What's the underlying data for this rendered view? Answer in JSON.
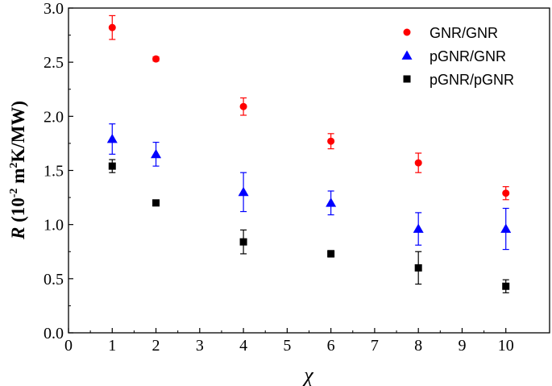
{
  "chart_data": {
    "type": "scatter",
    "xlim": [
      0,
      11
    ],
    "ylim": [
      0,
      3.0
    ],
    "x_ticks": [
      "0",
      "1",
      "2",
      "3",
      "4",
      "5",
      "6",
      "7",
      "8",
      "9",
      "10"
    ],
    "y_ticks": [
      "0.0",
      "0.5",
      "1.0",
      "1.5",
      "2.0",
      "2.5",
      "3.0"
    ],
    "xlabel": "χ",
    "ylabel": {
      "symbol": "R",
      "open": " (10",
      "exp1": "-2",
      "mid": " m",
      "exp2": "2",
      "close": "K/MW)"
    },
    "grid": false,
    "legend_position": "top-right",
    "series": [
      {
        "name": "GNR/GNR",
        "marker": "circle",
        "color": "#ff0000",
        "points": [
          {
            "x": 1,
            "y": 2.82,
            "err": 0.11
          },
          {
            "x": 2,
            "y": 2.53,
            "err": 0.02
          },
          {
            "x": 4,
            "y": 2.09,
            "err": 0.08
          },
          {
            "x": 6,
            "y": 1.77,
            "err": 0.07
          },
          {
            "x": 8,
            "y": 1.57,
            "err": 0.09
          },
          {
            "x": 10,
            "y": 1.29,
            "err": 0.06
          }
        ]
      },
      {
        "name": "pGNR/GNR",
        "marker": "triangle",
        "color": "#0000ff",
        "points": [
          {
            "x": 1,
            "y": 1.79,
            "err": 0.14
          },
          {
            "x": 2,
            "y": 1.65,
            "err": 0.11
          },
          {
            "x": 4,
            "y": 1.3,
            "err": 0.18
          },
          {
            "x": 6,
            "y": 1.2,
            "err": 0.11
          },
          {
            "x": 8,
            "y": 0.96,
            "err": 0.15
          },
          {
            "x": 10,
            "y": 0.96,
            "err": 0.19
          }
        ]
      },
      {
        "name": "pGNR/pGNR",
        "marker": "square",
        "color": "#000000",
        "points": [
          {
            "x": 1,
            "y": 1.54,
            "err": 0.06
          },
          {
            "x": 2,
            "y": 1.2,
            "err": 0.015
          },
          {
            "x": 4,
            "y": 0.84,
            "err": 0.11
          },
          {
            "x": 6,
            "y": 0.73,
            "err": 0.03
          },
          {
            "x": 8,
            "y": 0.6,
            "err": 0.15
          },
          {
            "x": 10,
            "y": 0.43,
            "err": 0.06
          }
        ]
      }
    ]
  }
}
